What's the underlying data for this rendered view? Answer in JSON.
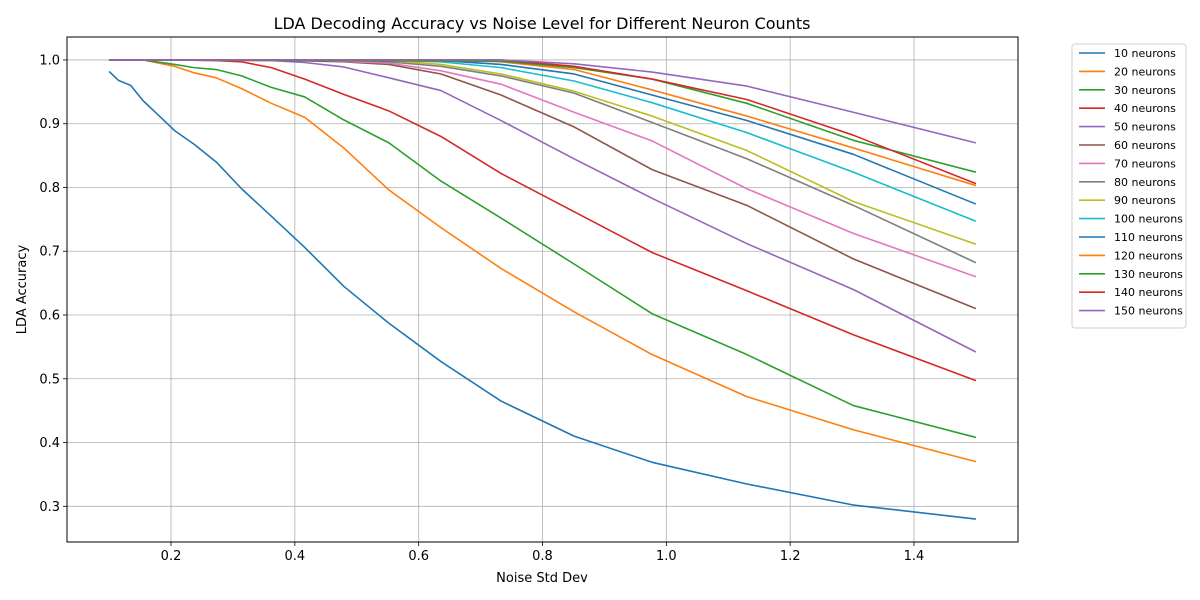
{
  "chart_data": {
    "type": "line",
    "title": "LDA Decoding Accuracy vs Noise Level for Different Neuron Counts",
    "xlabel": "Noise Std Dev",
    "ylabel": "LDA Accuracy",
    "xlim": [
      0.032,
      1.568
    ],
    "ylim": [
      0.244,
      1.036
    ],
    "xticks": [
      0.2,
      0.4,
      0.6,
      0.8,
      1.0,
      1.2,
      1.4
    ],
    "yticks": [
      0.3,
      0.4,
      0.5,
      0.6,
      0.7,
      0.8,
      0.9,
      1.0
    ],
    "grid": true,
    "legend_position": "outside-right",
    "colors": [
      "#1f77b4",
      "#ff7f0e",
      "#2ca02c",
      "#d62728",
      "#9467bd",
      "#8c564b",
      "#e377c2",
      "#7f7f7f",
      "#bcbd22",
      "#17becf"
    ],
    "series": [
      {
        "name": "10 neurons",
        "x": [
          0.1,
          0.115,
          0.135,
          0.155,
          0.178,
          0.206,
          0.237,
          0.273,
          0.314,
          0.362,
          0.416,
          0.479,
          0.552,
          0.636,
          0.733,
          0.851,
          0.977,
          1.13,
          1.302,
          1.5
        ],
        "values": [
          0.982,
          0.968,
          0.96,
          0.936,
          0.915,
          0.889,
          0.868,
          0.84,
          0.798,
          0.755,
          0.706,
          0.645,
          0.587,
          0.527,
          0.465,
          0.41,
          0.369,
          0.335,
          0.302,
          0.28
        ]
      },
      {
        "name": "20 neurons",
        "x": [
          0.1,
          0.155,
          0.206,
          0.237,
          0.273,
          0.314,
          0.362,
          0.416,
          0.479,
          0.552,
          0.636,
          0.733,
          0.851,
          0.977,
          1.13,
          1.302,
          1.5
        ],
        "values": [
          1.0,
          1.0,
          0.99,
          0.98,
          0.972,
          0.955,
          0.932,
          0.91,
          0.862,
          0.796,
          0.737,
          0.673,
          0.605,
          0.538,
          0.472,
          0.42,
          0.37
        ]
      },
      {
        "name": "30 neurons",
        "x": [
          0.1,
          0.155,
          0.206,
          0.237,
          0.273,
          0.314,
          0.362,
          0.416,
          0.479,
          0.552,
          0.636,
          0.733,
          0.851,
          0.977,
          1.13,
          1.302,
          1.5
        ],
        "values": [
          1.0,
          1.0,
          0.993,
          0.988,
          0.985,
          0.975,
          0.957,
          0.942,
          0.906,
          0.87,
          0.81,
          0.752,
          0.68,
          0.602,
          0.538,
          0.458,
          0.408
        ]
      },
      {
        "name": "40 neurons",
        "x": [
          0.1,
          0.206,
          0.273,
          0.314,
          0.362,
          0.416,
          0.479,
          0.552,
          0.636,
          0.733,
          0.851,
          0.977,
          1.13,
          1.302,
          1.5
        ],
        "values": [
          1.0,
          1.0,
          0.999,
          0.997,
          0.988,
          0.97,
          0.946,
          0.92,
          0.88,
          0.822,
          0.762,
          0.698,
          0.638,
          0.569,
          0.497
        ]
      },
      {
        "name": "50 neurons",
        "x": [
          0.1,
          0.273,
          0.362,
          0.416,
          0.479,
          0.552,
          0.636,
          0.733,
          0.851,
          0.977,
          1.13,
          1.302,
          1.5
        ],
        "values": [
          1.0,
          1.0,
          0.999,
          0.996,
          0.989,
          0.972,
          0.952,
          0.905,
          0.845,
          0.783,
          0.712,
          0.64,
          0.542
        ]
      },
      {
        "name": "60 neurons",
        "x": [
          0.1,
          0.362,
          0.479,
          0.552,
          0.636,
          0.733,
          0.851,
          0.977,
          1.13,
          1.302,
          1.5
        ],
        "values": [
          1.0,
          1.0,
          0.997,
          0.993,
          0.978,
          0.945,
          0.895,
          0.828,
          0.772,
          0.688,
          0.61
        ]
      },
      {
        "name": "70 neurons",
        "x": [
          0.1,
          0.416,
          0.552,
          0.636,
          0.733,
          0.851,
          0.977,
          1.13,
          1.302,
          1.5
        ],
        "values": [
          1.0,
          1.0,
          0.995,
          0.983,
          0.962,
          0.918,
          0.873,
          0.798,
          0.728,
          0.66
        ]
      },
      {
        "name": "80 neurons",
        "x": [
          0.1,
          0.479,
          0.552,
          0.636,
          0.733,
          0.851,
          0.977,
          1.13,
          1.302,
          1.5
        ],
        "values": [
          1.0,
          1.0,
          0.997,
          0.99,
          0.975,
          0.948,
          0.902,
          0.845,
          0.772,
          0.682
        ]
      },
      {
        "name": "90 neurons",
        "x": [
          0.1,
          0.552,
          0.636,
          0.733,
          0.851,
          0.977,
          1.13,
          1.302,
          1.5
        ],
        "values": [
          1.0,
          0.999,
          0.993,
          0.978,
          0.951,
          0.912,
          0.858,
          0.778,
          0.711
        ]
      },
      {
        "name": "100 neurons",
        "x": [
          0.1,
          0.552,
          0.636,
          0.733,
          0.851,
          0.977,
          1.13,
          1.302,
          1.5
        ],
        "values": [
          1.0,
          1.0,
          0.997,
          0.988,
          0.967,
          0.933,
          0.886,
          0.824,
          0.747
        ]
      },
      {
        "name": "110 neurons",
        "x": [
          0.1,
          0.636,
          0.733,
          0.851,
          0.977,
          1.13,
          1.302,
          1.5
        ],
        "values": [
          1.0,
          0.999,
          0.993,
          0.978,
          0.945,
          0.905,
          0.852,
          0.774
        ]
      },
      {
        "name": "120 neurons",
        "x": [
          0.1,
          0.636,
          0.733,
          0.851,
          0.977,
          1.13,
          1.302,
          1.5
        ],
        "values": [
          1.0,
          1.0,
          0.997,
          0.985,
          0.953,
          0.912,
          0.862,
          0.803
        ]
      },
      {
        "name": "130 neurons",
        "x": [
          0.1,
          0.733,
          0.851,
          0.977,
          1.13,
          1.302,
          1.5
        ],
        "values": [
          1.0,
          0.998,
          0.988,
          0.97,
          0.932,
          0.874,
          0.824
        ]
      },
      {
        "name": "140 neurons",
        "x": [
          0.1,
          0.733,
          0.851,
          0.977,
          1.13,
          1.302,
          1.5
        ],
        "values": [
          1.0,
          1.0,
          0.99,
          0.97,
          0.938,
          0.882,
          0.806
        ]
      },
      {
        "name": "150 neurons",
        "x": [
          0.1,
          0.733,
          0.851,
          0.977,
          1.13,
          1.302,
          1.5
        ],
        "values": [
          1.0,
          1.0,
          0.994,
          0.981,
          0.959,
          0.918,
          0.87
        ]
      }
    ]
  }
}
